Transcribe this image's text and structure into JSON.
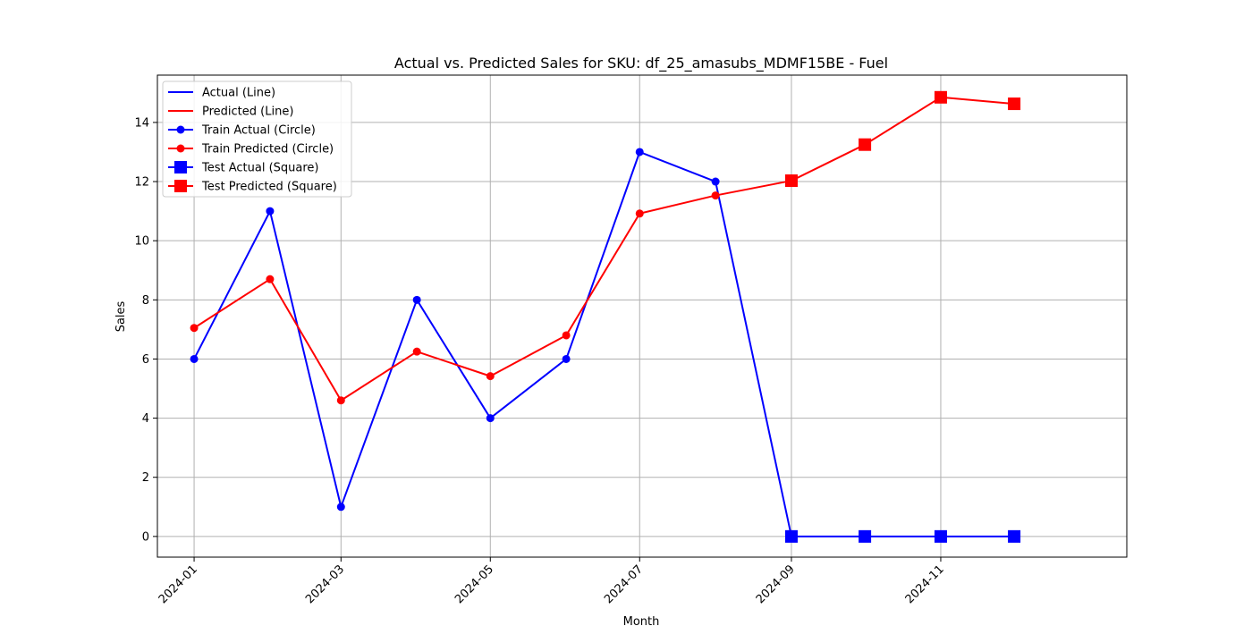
{
  "chart_data": {
    "type": "line",
    "title": "Actual vs. Predicted Sales for SKU: df_25_amasubs_MDMF15BE - Fuel",
    "xlabel": "Month",
    "ylabel": "Sales",
    "x_ticks": [
      "2024-01",
      "2024-03",
      "2024-05",
      "2024-07",
      "2024-09",
      "2024-11"
    ],
    "y_ticks": [
      "0",
      "2",
      "4",
      "6",
      "8",
      "10",
      "12",
      "14"
    ],
    "ylim": [
      -0.7,
      15.6
    ],
    "xlim": [
      "2023-12-17",
      "2025-01-16"
    ],
    "grid": true,
    "legend_position": "upper-left",
    "x": [
      "2024-01-01",
      "2024-02-01",
      "2024-03-01",
      "2024-04-01",
      "2024-05-01",
      "2024-06-01",
      "2024-07-01",
      "2024-08-01",
      "2024-09-01",
      "2024-10-01",
      "2024-11-01",
      "2024-12-01"
    ],
    "train_count": 8,
    "series": [
      {
        "name": "Actual (Line)",
        "color": "#0000ff",
        "role": "actual",
        "values": [
          6,
          11,
          1,
          8,
          4,
          6,
          13,
          12,
          0,
          0,
          0,
          0
        ]
      },
      {
        "name": "Predicted (Line)",
        "color": "#ff0000",
        "role": "predicted",
        "values": [
          7.05,
          8.7,
          4.6,
          6.25,
          5.42,
          6.8,
          10.92,
          11.53,
          12.03,
          13.25,
          14.85,
          14.63
        ]
      }
    ],
    "legend": [
      {
        "label": "Actual (Line)",
        "color": "#0000ff",
        "marker": "none"
      },
      {
        "label": "Predicted (Line)",
        "color": "#ff0000",
        "marker": "none"
      },
      {
        "label": "Train Actual (Circle)",
        "color": "#0000ff",
        "marker": "circle"
      },
      {
        "label": "Train Predicted (Circle)",
        "color": "#ff0000",
        "marker": "circle"
      },
      {
        "label": "Test Actual (Square)",
        "color": "#0000ff",
        "marker": "square"
      },
      {
        "label": "Test Predicted (Square)",
        "color": "#ff0000",
        "marker": "square"
      }
    ]
  }
}
